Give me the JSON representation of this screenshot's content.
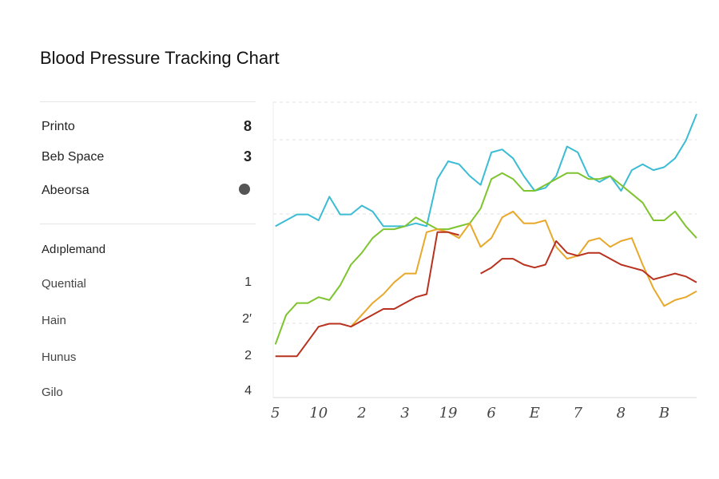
{
  "header": {
    "title": "Blood Pressure Tracking Chart"
  },
  "sidebar": {
    "stats": [
      {
        "label": "Printo",
        "value": "8"
      },
      {
        "label": "Beb Space",
        "value": "3"
      },
      {
        "label": "Abeorsa"
      }
    ],
    "section": {
      "title": "Adıplemand",
      "items": [
        {
          "label": "Quential",
          "value": "1"
        },
        {
          "label": "Hain",
          "value": "2′"
        },
        {
          "label": "Hunus",
          "value": "2"
        },
        {
          "label": "Gilo",
          "value": "4"
        }
      ]
    }
  },
  "chart_data": {
    "type": "line",
    "x": [
      0,
      1,
      2,
      3,
      4,
      5,
      6,
      7,
      8,
      9,
      10,
      11,
      12,
      13,
      14,
      15,
      16,
      17,
      18,
      19,
      20,
      21,
      22,
      23,
      24,
      25,
      26,
      27,
      28,
      29,
      30,
      31,
      32,
      33,
      34,
      35,
      36,
      37,
      38,
      39
    ],
    "xlim": [
      -0.2,
      39
    ],
    "xticks": [
      {
        "value": 0,
        "label": "5"
      },
      {
        "value": 4,
        "label": "10"
      },
      {
        "value": 8,
        "label": "2"
      },
      {
        "value": 12,
        "label": "3"
      },
      {
        "value": 16,
        "label": "19"
      },
      {
        "value": 20,
        "label": "6"
      },
      {
        "value": 24,
        "label": "E"
      },
      {
        "value": 28,
        "label": "7"
      },
      {
        "value": 32,
        "label": "8"
      },
      {
        "value": 36,
        "label": "B"
      }
    ],
    "ylim": [
      0,
      100
    ],
    "series": [
      {
        "color": "#3bbcd4",
        "values": [
          58,
          60,
          62,
          62,
          60,
          68,
          62,
          62,
          65,
          63,
          58,
          58,
          58,
          59,
          58,
          74,
          80,
          79,
          75,
          72,
          83,
          84,
          81,
          75,
          70,
          71,
          75,
          85,
          83,
          75,
          73,
          75,
          70,
          77,
          79,
          77,
          78,
          81,
          87,
          96
        ]
      },
      {
        "color": "#7dc42e",
        "values": [
          18,
          28,
          32,
          32,
          34,
          33,
          38,
          45,
          49,
          54,
          57,
          57,
          58,
          61,
          59,
          57,
          57,
          58,
          59,
          64,
          74,
          76,
          74,
          70,
          70,
          72,
          74,
          76,
          76,
          74,
          74,
          75,
          72,
          69,
          66,
          60,
          60,
          63,
          58,
          54
        ]
      },
      {
        "color": "#e8a82a",
        "values": [
          null,
          null,
          null,
          null,
          null,
          null,
          null,
          24,
          28,
          32,
          35,
          39,
          42,
          42,
          56,
          57,
          56,
          54,
          59,
          51,
          54,
          61,
          63,
          59,
          59,
          60,
          51,
          47,
          48,
          53,
          54,
          51,
          53,
          54,
          45,
          37,
          31,
          33,
          34,
          36
        ]
      },
      {
        "color": "#b8321f",
        "values": [
          14,
          14,
          14,
          19,
          24,
          25,
          25,
          24,
          26,
          28,
          30,
          30,
          32,
          34,
          35,
          56,
          56,
          55,
          null,
          42,
          44,
          47,
          47,
          45,
          44,
          45,
          53,
          49,
          48,
          49,
          49,
          47,
          45,
          44,
          43,
          40,
          41,
          42,
          41,
          39
        ]
      }
    ]
  }
}
